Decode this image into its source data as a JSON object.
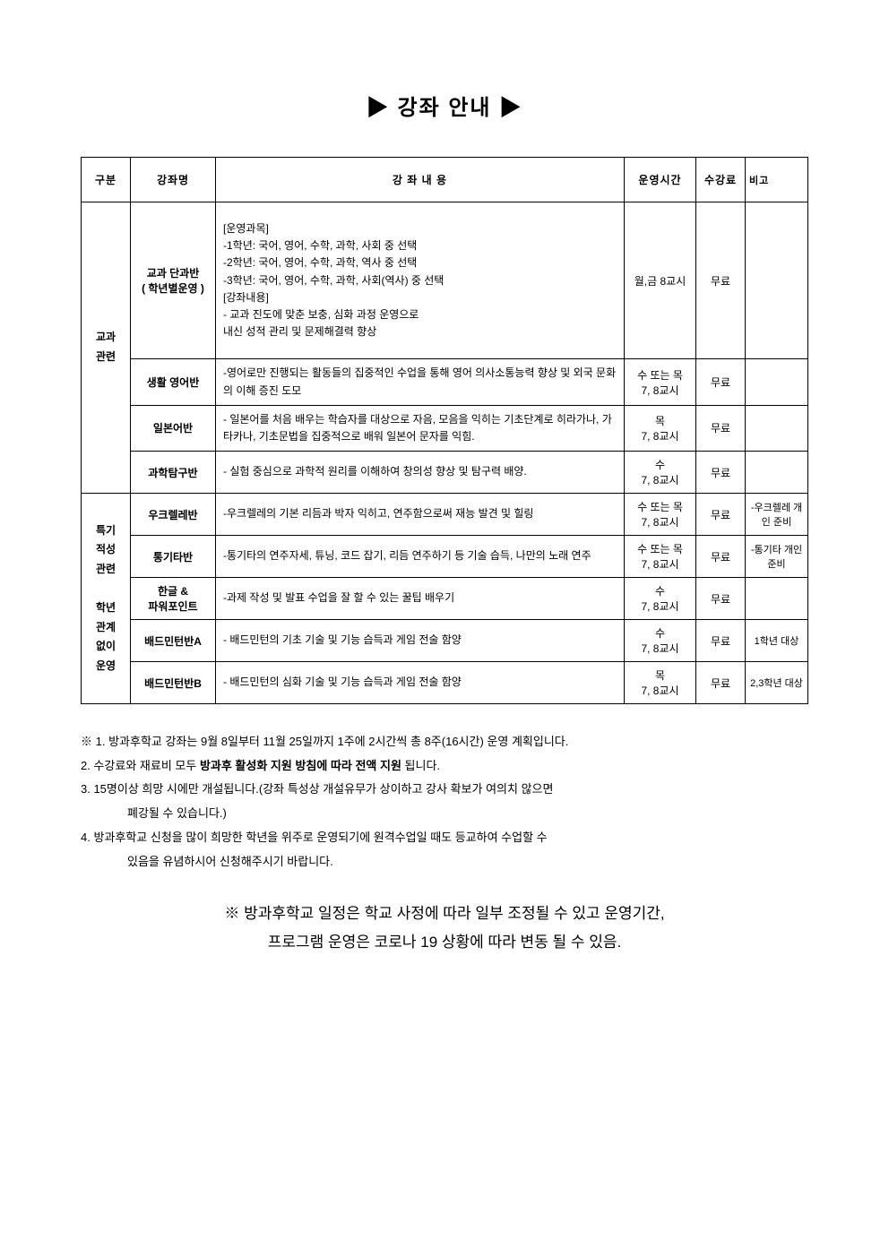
{
  "title": "▶ 강좌 안내 ▶",
  "headers": {
    "category": "구분",
    "course": "강좌명",
    "content": "강 좌 내 용",
    "time": "운영시간",
    "fee": "수강료",
    "note": "비고"
  },
  "categories": [
    {
      "label": "교과\n관련",
      "rowspan": 4,
      "rows": [
        {
          "course": "교과 단과반\n(  학년별운영  )",
          "content": "[운영과목]\n-1학년: 국어, 영어, 수학, 과학, 사회 중 선택\n-2학년: 국어, 영어, 수학, 과학, 역사 중 선택\n-3학년: 국어, 영어, 수학, 과학, 사회(역사) 중 선택\n[강좌내용]\n- 교과 진도에 맞춘 보충, 심화 과정 운영으로\n  내신 성적 관리 및 문제해결력 향상",
          "time": "월,금 8교시",
          "fee": "무료",
          "note": "",
          "tall": true
        },
        {
          "course": "생활 영어반",
          "content": "-영어로만 진행되는 활동들의 집중적인 수업을 통해 영어 의사소통능력 향상 및 외국 문화의 이해 증진 도모",
          "time": "수 또는 목\n7, 8교시",
          "fee": "무료",
          "note": ""
        },
        {
          "course": "일본어반",
          "content": "- 일본어를 처음 배우는 학습자를 대상으로 자음, 모음을 익히는 기초단계로 히라가나, 가타카나, 기초문법을 집중적으로 배워 일본어 문자를 익힘.",
          "time": "목\n7, 8교시",
          "fee": "무료",
          "note": ""
        },
        {
          "course": "과학탐구반",
          "content": "- 실험 중심으로 과학적 원리를 이해하여 창의성 향상 및 탐구력 배양.",
          "time": "수\n7, 8교시",
          "fee": "무료",
          "note": ""
        }
      ]
    },
    {
      "label": "특기\n적성\n관련\n\n학년\n관계\n없이\n운영",
      "rowspan": 5,
      "rows": [
        {
          "course": "우크렐레반",
          "content": "-우크렐레의 기본 리듬과 박자 익히고, 연주함으로써 재능 발견 및 힐링",
          "time": "수 또는 목\n7, 8교시",
          "fee": "무료",
          "note": "-우크렐레 개인 준비"
        },
        {
          "course": "통기타반",
          "content": "-통기타의 연주자세, 튜닝, 코드 잡기, 리듬 연주하기 등 기술 습득, 나만의 노래 연주",
          "time": "수 또는 목\n7, 8교시",
          "fee": "무료",
          "note": "-통기타 개인 준비"
        },
        {
          "course": "한글 &\n파워포인트",
          "content": "-과제 작성 및 발표 수업을 잘 할 수 있는 꿀팁 배우기",
          "time": "수\n7, 8교시",
          "fee": "무료",
          "note": ""
        },
        {
          "course": "배드민턴반A",
          "content": "- 배드민턴의 기초 기술 및 기능 습득과 게임 전술 함양",
          "time": "수\n7, 8교시",
          "fee": "무료",
          "note": "1학년 대상"
        },
        {
          "course": "배드민턴반B",
          "content": "- 배드민턴의 심화 기술 및 기능 습득과 게임 전술 함양",
          "time": "목\n7, 8교시",
          "fee": "무료",
          "note": "2,3학년 대상"
        }
      ]
    }
  ],
  "notes": [
    {
      "text": "※ 1. 방과후학교 강좌는 9월 8일부터 11월 25일까지 1주에 2시간씩 총 8주(16시간) 운영 계획입니다."
    },
    {
      "prefix": "    2. 수강료와 재료비 모두  ",
      "bold": "방과후 활성화 지원 방침에 따라 전액 지원",
      "suffix": " 됩니다."
    },
    {
      "text": "    3. 15명이상 희망 시에만 개설됩니다.(강좌 특성상 개설유무가 상이하고 강사 확보가 여의치 않으면"
    },
    {
      "text": "폐강될 수 있습니다.)",
      "sub": true
    },
    {
      "text": "    4. 방과후학교 신청을 많이 희망한 학년을 위주로 운영되기에 원격수업일 때도 등교하여 수업할 수"
    },
    {
      "text": "있음을 유념하시어 신청해주시기 바랍니다.",
      "sub": true
    }
  ],
  "footer": {
    "line1": "※ 방과후학교 일정은 학교 사정에 따라 일부 조정될 수 있고 운영기간,",
    "line2": "프로그램 운영은 코로나 19 상황에 따라 변동 될 수 있음."
  }
}
